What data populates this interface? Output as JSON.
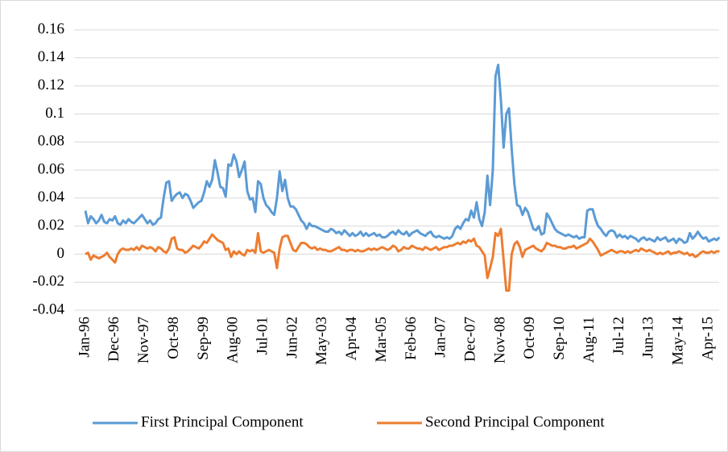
{
  "chart_data": {
    "type": "line",
    "categories": [
      "Jan-96",
      null,
      null,
      null,
      null,
      null,
      null,
      null,
      null,
      null,
      null,
      "Dec-96",
      null,
      null,
      null,
      null,
      null,
      null,
      null,
      null,
      null,
      null,
      "Nov-97",
      null,
      null,
      null,
      null,
      null,
      null,
      null,
      null,
      null,
      null,
      "Oct-98",
      null,
      null,
      null,
      null,
      null,
      null,
      null,
      null,
      null,
      null,
      "Sep-99",
      null,
      null,
      null,
      null,
      null,
      null,
      null,
      null,
      null,
      null,
      "Aug-00",
      null,
      null,
      null,
      null,
      null,
      null,
      null,
      null,
      null,
      null,
      "Jul-01",
      null,
      null,
      null,
      null,
      null,
      null,
      null,
      null,
      null,
      null,
      "Jun-02",
      null,
      null,
      null,
      null,
      null,
      null,
      null,
      null,
      null,
      null,
      "May-03",
      null,
      null,
      null,
      null,
      null,
      null,
      null,
      null,
      null,
      null,
      "Apr-04",
      null,
      null,
      null,
      null,
      null,
      null,
      null,
      null,
      null,
      null,
      "Mar-05",
      null,
      null,
      null,
      null,
      null,
      null,
      null,
      null,
      null,
      null,
      "Feb-06",
      null,
      null,
      null,
      null,
      null,
      null,
      null,
      null,
      null,
      null,
      "Jan-07",
      null,
      null,
      null,
      null,
      null,
      null,
      null,
      null,
      null,
      null,
      "Dec-07",
      null,
      null,
      null,
      null,
      null,
      null,
      null,
      null,
      null,
      null,
      "Nov-08",
      null,
      null,
      null,
      null,
      null,
      null,
      null,
      null,
      null,
      null,
      "Oct-09",
      null,
      null,
      null,
      null,
      null,
      null,
      null,
      null,
      null,
      null,
      "Sep-10",
      null,
      null,
      null,
      null,
      null,
      null,
      null,
      null,
      null,
      null,
      "Aug-11",
      null,
      null,
      null,
      null,
      null,
      null,
      null,
      null,
      null,
      null,
      "Jul-12",
      null,
      null,
      null,
      null,
      null,
      null,
      null,
      null,
      null,
      null,
      "Jun-13",
      null,
      null,
      null,
      null,
      null,
      null,
      null,
      null,
      null,
      null,
      "May-14",
      null,
      null,
      null,
      null,
      null,
      null,
      null,
      null,
      null,
      null,
      "Apr-15",
      null,
      null,
      null,
      null
    ],
    "series": [
      {
        "name": "First Principal Component",
        "color": "#5b9bd5",
        "values": [
          0.031,
          0.022,
          0.027,
          0.025,
          0.022,
          0.024,
          0.028,
          0.023,
          0.022,
          0.025,
          0.024,
          0.027,
          0.022,
          0.021,
          0.024,
          0.022,
          0.025,
          0.023,
          0.022,
          0.024,
          0.026,
          0.028,
          0.025,
          0.022,
          0.024,
          0.021,
          0.022,
          0.025,
          0.026,
          0.04,
          0.051,
          0.052,
          0.038,
          0.041,
          0.043,
          0.044,
          0.04,
          0.043,
          0.042,
          0.038,
          0.033,
          0.035,
          0.037,
          0.038,
          0.044,
          0.052,
          0.048,
          0.053,
          0.067,
          0.058,
          0.048,
          0.047,
          0.041,
          0.064,
          0.063,
          0.071,
          0.066,
          0.055,
          0.06,
          0.066,
          0.045,
          0.039,
          0.04,
          0.03,
          0.052,
          0.05,
          0.04,
          0.035,
          0.033,
          0.03,
          0.028,
          0.04,
          0.059,
          0.045,
          0.053,
          0.04,
          0.034,
          0.034,
          0.032,
          0.028,
          0.024,
          0.022,
          0.018,
          0.022,
          0.02,
          0.02,
          0.019,
          0.018,
          0.017,
          0.016,
          0.016,
          0.018,
          0.017,
          0.015,
          0.016,
          0.014,
          0.017,
          0.015,
          0.013,
          0.015,
          0.013,
          0.014,
          0.016,
          0.013,
          0.015,
          0.013,
          0.014,
          0.015,
          0.013,
          0.014,
          0.012,
          0.012,
          0.013,
          0.015,
          0.016,
          0.014,
          0.017,
          0.015,
          0.014,
          0.016,
          0.013,
          0.015,
          0.016,
          0.017,
          0.015,
          0.014,
          0.013,
          0.015,
          0.016,
          0.013,
          0.012,
          0.013,
          0.012,
          0.011,
          0.012,
          0.011,
          0.013,
          0.018,
          0.02,
          0.018,
          0.022,
          0.025,
          0.024,
          0.031,
          0.026,
          0.037,
          0.025,
          0.02,
          0.03,
          0.056,
          0.035,
          0.06,
          0.127,
          0.135,
          0.11,
          0.076,
          0.1,
          0.104,
          0.075,
          0.05,
          0.035,
          0.034,
          0.028,
          0.033,
          0.03,
          0.024,
          0.018,
          0.017,
          0.02,
          0.014,
          0.015,
          0.029,
          0.026,
          0.022,
          0.018,
          0.016,
          0.015,
          0.014,
          0.013,
          0.014,
          0.013,
          0.012,
          0.013,
          0.011,
          0.012,
          0.012,
          0.031,
          0.032,
          0.032,
          0.025,
          0.02,
          0.018,
          0.015,
          0.013,
          0.016,
          0.017,
          0.016,
          0.012,
          0.014,
          0.012,
          0.013,
          0.011,
          0.013,
          0.012,
          0.011,
          0.009,
          0.011,
          0.012,
          0.01,
          0.011,
          0.01,
          0.009,
          0.012,
          0.01,
          0.011,
          0.012,
          0.009,
          0.01,
          0.011,
          0.008,
          0.011,
          0.01,
          0.008,
          0.009,
          0.015,
          0.011,
          0.013,
          0.016,
          0.013,
          0.011,
          0.012,
          0.009,
          0.01,
          0.011,
          0.01,
          0.012
        ]
      },
      {
        "name": "Second Principal Component",
        "color": "#ed7d31",
        "values": [
          0,
          0.001,
          -0.004,
          -0.001,
          -0.002,
          -0.003,
          -0.002,
          -0.001,
          0.001,
          -0.002,
          -0.004,
          -0.006,
          0,
          0.003,
          0.004,
          0.003,
          0.003,
          0.004,
          0.003,
          0.005,
          0.003,
          0.006,
          0.005,
          0.004,
          0.005,
          0.004,
          0.002,
          0.005,
          0.004,
          0.002,
          0.001,
          0.004,
          0.011,
          0.012,
          0.004,
          0.003,
          0.003,
          0.001,
          0.002,
          0.004,
          0.006,
          0.005,
          0.004,
          0.006,
          0.009,
          0.008,
          0.011,
          0.014,
          0.012,
          0.01,
          0.009,
          0.008,
          0.003,
          0.004,
          -0.002,
          0.002,
          0,
          0.002,
          0,
          -0.001,
          0.003,
          0.002,
          0.003,
          0.001,
          0.015,
          0.002,
          0.001,
          0.002,
          0.003,
          0.002,
          0.001,
          -0.01,
          0.004,
          0.012,
          0.013,
          0.013,
          0.008,
          0.003,
          0.002,
          0.005,
          0.008,
          0.008,
          0.007,
          0.005,
          0.004,
          0.005,
          0.003,
          0.004,
          0.003,
          0.003,
          0.002,
          0.002,
          0.003,
          0.004,
          0.005,
          0.003,
          0.003,
          0.002,
          0.003,
          0.003,
          0.002,
          0.003,
          0.002,
          0.002,
          0.003,
          0.004,
          0.003,
          0.004,
          0.003,
          0.004,
          0.005,
          0.004,
          0.003,
          0.004,
          0.006,
          0.005,
          0.002,
          0.003,
          0.005,
          0.004,
          0.004,
          0.006,
          0.005,
          0.004,
          0.004,
          0.003,
          0.005,
          0.004,
          0.003,
          0.004,
          0.005,
          0.003,
          0.004,
          0.005,
          0.005,
          0.006,
          0.006,
          0.007,
          0.008,
          0.007,
          0.009,
          0.008,
          0.01,
          0.009,
          0.011,
          0.006,
          0.005,
          0.002,
          -0.001,
          -0.017,
          -0.01,
          -0.002,
          0.015,
          0.013,
          0.018,
          -0.004,
          -0.026,
          -0.026,
          0,
          0.007,
          0.009,
          0.005,
          -0.002,
          0.003,
          0.004,
          0.005,
          0.006,
          0.004,
          0.003,
          0.002,
          0.004,
          0.008,
          0.007,
          0.006,
          0.006,
          0.005,
          0.005,
          0.004,
          0.004,
          0.005,
          0.005,
          0.006,
          0.004,
          0.005,
          0.006,
          0.007,
          0.008,
          0.011,
          0.009,
          0.006,
          0.003,
          -0.001,
          0,
          0.001,
          0.002,
          0.003,
          0.002,
          0.001,
          0.002,
          0.002,
          0.001,
          0.002,
          0.001,
          0.002,
          0.003,
          0.002,
          0.004,
          0.003,
          0.002,
          0.003,
          0.002,
          0.001,
          0,
          0.001,
          0,
          0.001,
          0.002,
          0,
          0.001,
          0.001,
          0.002,
          0.001,
          0,
          0.001,
          -0.001,
          0,
          -0.002,
          -0.001,
          0.001,
          0.002,
          0.001,
          0.001,
          0.002,
          0.001,
          0.002,
          0.002
        ]
      }
    ],
    "ylim": [
      -0.04,
      0.16
    ],
    "yticks": [
      -0.04,
      -0.02,
      0,
      0.02,
      0.04,
      0.06,
      0.08,
      0.1,
      0.12,
      0.14,
      0.16
    ],
    "grid": true,
    "legend": "bottom"
  }
}
